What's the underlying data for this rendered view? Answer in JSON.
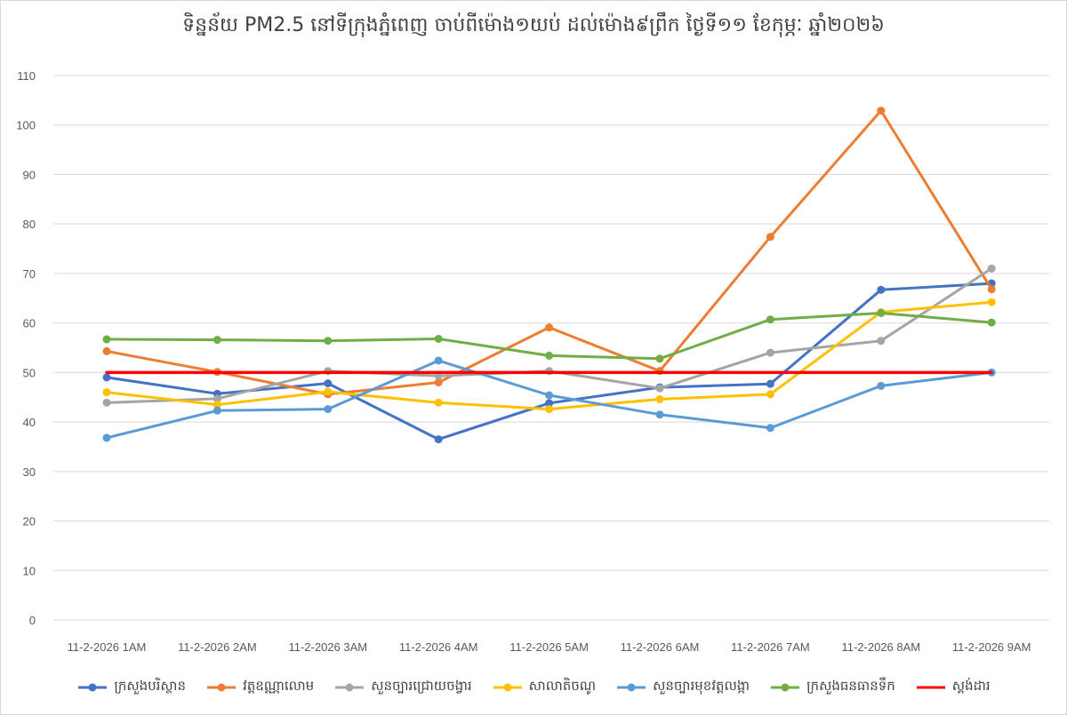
{
  "chart_data": {
    "type": "line",
    "title": "ទិន្នន័យ PM2.5 នៅទីក្រុងភ្នំពេញ ចាប់ពីម៉ោង១យប់ ដល់ម៉ោង៩ព្រឹក ថ្ងៃទី១១ ខែកុម្ភៈ ឆ្នាំ២០២៦",
    "xlabel": "",
    "ylabel": "",
    "ylim": [
      0,
      110
    ],
    "yticks": [
      "0",
      "10",
      "20",
      "30",
      "40",
      "50",
      "60",
      "70",
      "80",
      "90",
      "100",
      "110"
    ],
    "categories": [
      "11-2-2026 1AM",
      "11-2-2026 2AM",
      "11-2-2026 3AM",
      "11-2-2026 4AM",
      "11-2-2026 5AM",
      "11-2-2026 6AM",
      "11-2-2026 7AM",
      "11-2-2026 8AM",
      "11-2-2026 9AM"
    ],
    "grid": true,
    "legend_position": "bottom",
    "series": [
      {
        "name": "ក្រសួងបរិស្ថាន",
        "color": "#4472c4",
        "markers": true,
        "values": [
          49,
          45.7,
          47.8,
          36.5,
          43.8,
          47,
          47.7,
          66.7,
          68
        ]
      },
      {
        "name": "វត្តឧណ្ណាលោម",
        "color": "#ed7d31",
        "markers": true,
        "values": [
          54.3,
          50.1,
          45.6,
          48,
          59.1,
          50.3,
          77.4,
          102.9,
          66.8
        ]
      },
      {
        "name": "សួនច្បារជ្រោយចង្វារ",
        "color": "#a5a5a5",
        "markers": true,
        "values": [
          43.9,
          44.7,
          50.3,
          49.3,
          50.3,
          46.8,
          54,
          56.4,
          71
        ]
      },
      {
        "name": "សាលាតិចណូ",
        "color": "#ffc000",
        "markers": true,
        "values": [
          46,
          43.5,
          46.1,
          43.9,
          42.6,
          44.6,
          45.6,
          62.2,
          64.2
        ]
      },
      {
        "name": "សួនច្បារមុខវត្តលង្កា",
        "color": "#5b9bd5",
        "markers": true,
        "values": [
          36.8,
          42.3,
          42.6,
          52.4,
          45.4,
          41.5,
          38.8,
          47.3,
          50
        ]
      },
      {
        "name": "ក្រសួងធនធានទឹក",
        "color": "#70ad47",
        "markers": true,
        "values": [
          56.7,
          56.6,
          56.4,
          56.8,
          53.4,
          52.8,
          60.7,
          62,
          60.1
        ]
      },
      {
        "name": "ស្តង់ដារ",
        "color": "#ff0000",
        "markers": false,
        "values": [
          50,
          50,
          50,
          50,
          50,
          50,
          50,
          50,
          50
        ]
      }
    ]
  }
}
